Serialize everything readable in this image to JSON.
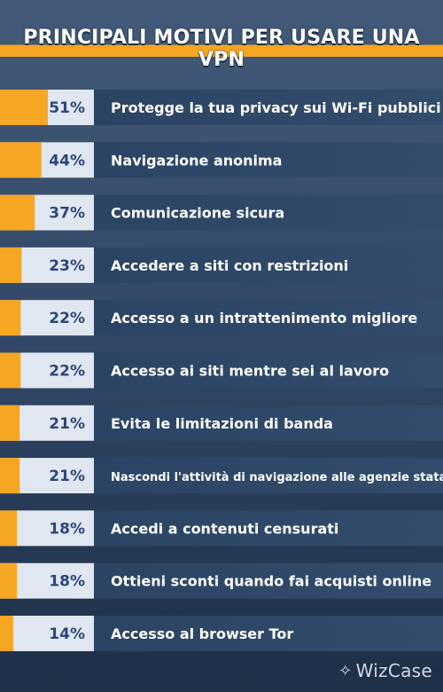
{
  "title": "PRINCIPALI MOTIVI PER USARE UNA VPN",
  "brand": {
    "logo_icon": "sparkle-icon",
    "name": "WizCase"
  },
  "colors": {
    "bar": "#f5a623",
    "pct_box": "#e1e7f1",
    "pct_text": "#2b4679",
    "row": "#2c4361"
  },
  "chart_data": {
    "type": "bar",
    "orientation": "horizontal",
    "title": "PRINCIPALI MOTIVI PER USARE UNA VPN",
    "unit": "%",
    "categories": [
      "Protegge la tua privacy sui Wi-Fi pubblici",
      "Navigazione anonima",
      "Comunicazione sicura",
      "Accedere a siti con restrizioni",
      "Accesso a un intrattenimento migliore",
      "Accesso ai siti mentre sei al lavoro",
      "Evita le limitazioni di banda",
      "Nascondi l'attività di navigazione alle agenzie statali",
      "Accedi a contenuti censurati",
      "Ottieni sconti quando fai acquisti online",
      "Accesso al browser Tor"
    ],
    "values": [
      51,
      44,
      37,
      23,
      22,
      22,
      21,
      21,
      18,
      18,
      14
    ],
    "value_labels": [
      "51%",
      "44%",
      "37%",
      "23%",
      "22%",
      "22%",
      "21%",
      "21%",
      "18%",
      "18%",
      "14%"
    ]
  }
}
